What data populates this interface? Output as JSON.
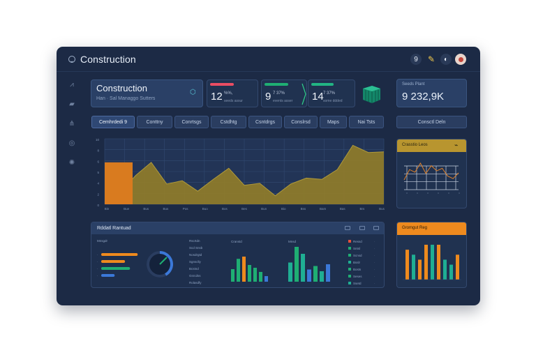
{
  "app": {
    "title": "Construction",
    "icon": "helmet-icon"
  },
  "top_actions": [
    {
      "name": "help-icon",
      "glyph": "9"
    },
    {
      "name": "key-icon",
      "glyph": "✎"
    },
    {
      "name": "theme-icon",
      "glyph": "◐"
    },
    {
      "name": "avatar",
      "glyph": ""
    }
  ],
  "sidebar": [
    {
      "name": "analytics-icon",
      "glyph": "⩘"
    },
    {
      "name": "briefcase-icon",
      "glyph": "▰"
    },
    {
      "name": "network-icon",
      "glyph": "⋔"
    },
    {
      "name": "globe-icon",
      "glyph": "◎"
    },
    {
      "name": "settings-icon",
      "glyph": "✺"
    }
  ],
  "title_card": {
    "title": "Construction",
    "subtitle": "Han · Sal Managgo Sutters",
    "icon": "gear-icon"
  },
  "kpis": [
    {
      "value": "12",
      "line1": "%%,",
      "line2": "seeds assur",
      "color": "#ea4d63"
    },
    {
      "value": "9",
      "line1": "7 37%",
      "line2": "events asser",
      "color": "#1fae73"
    },
    {
      "value": "14",
      "line1": "7 37%",
      "line2": "some ddded",
      "color": "#22b483"
    }
  ],
  "revenue": {
    "label": "Seeds Plant",
    "value": "9 232,9K"
  },
  "tabs": [
    "Cemhrdedi 9",
    "Conttny",
    "Conrtsgs",
    "Cstdhtg",
    "Csntdrgs",
    "Conslrsd",
    "Maps",
    "Nai Tsts"
  ],
  "tab_right": "Consctl Deln",
  "main_chart": {
    "y_ticks": [
      "10",
      "8",
      "6",
      "5",
      "4",
      "2",
      "0"
    ],
    "x_ticks": [
      "Bin",
      "Bue",
      "Bus",
      "Bus",
      "Pos",
      "Buo",
      "Bos",
      "Bes",
      "Bun",
      "Bio",
      "Bss",
      "Bam",
      "Bas",
      "Brs",
      "Bus"
    ],
    "area_color": "#8d7a2b",
    "bar_color": "#d97b1f"
  },
  "chart_data": [
    {
      "type": "area",
      "x": [
        0,
        1,
        2,
        3,
        4,
        5,
        6,
        7,
        8,
        9,
        10,
        11,
        12,
        13,
        14,
        15,
        16,
        17,
        18
      ],
      "values": [
        0.3,
        1.8,
        4.4,
        6.4,
        3.1,
        3.6,
        2.0,
        3.8,
        5.5,
        2.9,
        3.2,
        1.3,
        3.1,
        4.0,
        3.8,
        5.3,
        9.0,
        7.9,
        8.0
      ],
      "ylim": [
        0,
        10
      ],
      "highlight_bar": {
        "from": 0,
        "to": 1.8,
        "value": 6.4
      },
      "grid": true
    },
    {
      "type": "line",
      "title": "Crasstio Leos",
      "values": [
        2.0,
        3.6,
        3.2,
        4.6,
        3.0,
        4.2,
        3.4,
        3.8,
        2.6,
        2.2,
        3.1
      ],
      "grid": true
    },
    {
      "type": "bar",
      "title": "Gromgut Reg",
      "series": [
        {
          "values": [
            6,
            0,
            4,
            7,
            0,
            7,
            0,
            2,
            5
          ],
          "color": "#ee8a1e"
        },
        {
          "values": [
            0,
            5,
            0,
            0,
            7,
            0,
            4,
            3,
            0
          ],
          "color": "#1fae93"
        }
      ]
    }
  ],
  "side_card": {
    "title": "Crasstio Leos",
    "icon": "chart-icon"
  },
  "bottom_panel": {
    "title": "Rddatl Rantuad",
    "left_label": "Mnsgdr",
    "gauge_value": 0.42,
    "bars": [
      {
        "value": 0.95,
        "color": "#ee8a1e"
      },
      {
        "value": 0.62,
        "color": "#ee8a1e"
      },
      {
        "value": 0.75,
        "color": "#1fae73"
      },
      {
        "value": 0.35,
        "color": "#3b78d8"
      }
    ],
    "list_labels": [
      "Rscrtdn",
      "Scd Snsb",
      "Nosdrgtd",
      "Sgnsclly",
      "Bcstnd",
      "Gsrcdss",
      "Rolasdfy"
    ],
    "chart1_label": "Cranstd",
    "chart2_label": "Mnsd",
    "chart1_bars": [
      {
        "v": 0.45,
        "c": "#1fae73"
      },
      {
        "v": 0.82,
        "c": "#1fae73"
      },
      {
        "v": 0.9,
        "c": "#ee8a1e"
      },
      {
        "v": 0.6,
        "c": "#1fae73"
      },
      {
        "v": 0.5,
        "c": "#1fae73"
      },
      {
        "v": 0.35,
        "c": "#1fae73"
      },
      {
        "v": 0.2,
        "c": "#3b78d8"
      }
    ],
    "chart2_bars": [
      {
        "v": 0.55,
        "c": "#1fae93"
      },
      {
        "v": 1.0,
        "c": "#1fae73"
      },
      {
        "v": 0.8,
        "c": "#1fae93"
      },
      {
        "v": 0.35,
        "c": "#3b78d8"
      },
      {
        "v": 0.45,
        "c": "#1fae73"
      },
      {
        "v": 0.3,
        "c": "#1fae93"
      },
      {
        "v": 0.5,
        "c": "#3b78d8"
      }
    ],
    "legend": [
      {
        "label": "Ressd",
        "color": "#e8503a"
      },
      {
        "label": "Sntsl",
        "color": "#1fae73"
      },
      {
        "label": "Scnsd",
        "color": "#1fae73"
      },
      {
        "label": "Bsslr",
        "color": "#1fae93"
      },
      {
        "label": "Bosts",
        "color": "#1fae73"
      },
      {
        "label": "Seses",
        "color": "#1fae73"
      },
      {
        "label": "Ssetd",
        "color": "#1fae93"
      }
    ]
  },
  "bottom_right_card": {
    "title": "Gromgut Reg"
  }
}
